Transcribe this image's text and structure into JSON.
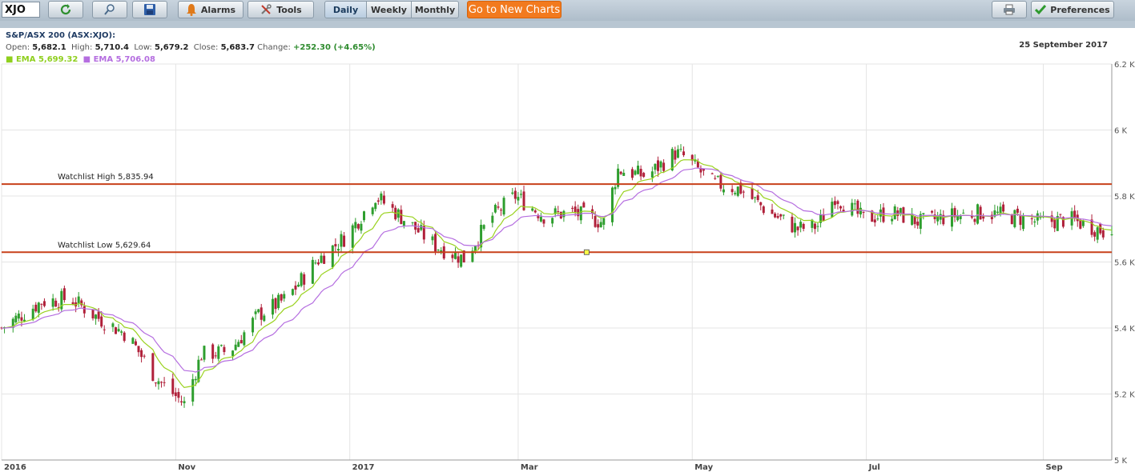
{
  "toolbar": {
    "symbol": "XJO",
    "alarms_label": "Alarms",
    "tools_label": "Tools",
    "periods": [
      "Daily",
      "Weekly",
      "Monthly"
    ],
    "active_period": "Daily",
    "new_charts_label": "Go to New Charts",
    "preferences_label": "Preferences"
  },
  "info": {
    "title": "S&P/ASX 200 (ASX:XJO):",
    "open_label": "Open:",
    "open": "5,682.1",
    "high_label": "High:",
    "high": "5,710.4",
    "low_label": "Low:",
    "low": "5,679.2",
    "close_label": "Close:",
    "close": "5,683.7",
    "change_label": "Change:",
    "change": "+252.30 (+4.65%)",
    "ema1_label": "EMA 5,699.32",
    "ema2_label": "EMA 5,706.08",
    "date": "25 September 2017"
  },
  "colors": {
    "up": "#2e9e2e",
    "down": "#b0203a",
    "ema1": "#9ad21f",
    "ema2": "#b56ee0",
    "watchlist": "#c8401a",
    "grid": "#e4e4e4"
  },
  "chart_data": {
    "type": "candlestick",
    "ylim": [
      5000,
      6200
    ],
    "yticks": [
      5000,
      5200,
      5400,
      5600,
      5800,
      6000,
      6200
    ],
    "ytick_labels": [
      "5 K",
      "5.2 K",
      "5.4 K",
      "5.6 K",
      "5.8 K",
      "6 K",
      "6.2 K"
    ],
    "x_range": [
      "2016-09-01",
      "2017-09-25"
    ],
    "xticks": [
      {
        "date": "2016-09-01",
        "label": "2016"
      },
      {
        "date": "2016-11-01",
        "label": "Nov"
      },
      {
        "date": "2017-01-01",
        "label": "2017"
      },
      {
        "date": "2017-03-01",
        "label": "Mar"
      },
      {
        "date": "2017-05-01",
        "label": "May"
      },
      {
        "date": "2017-07-01",
        "label": "Jul"
      },
      {
        "date": "2017-09-01",
        "label": "Sep"
      }
    ],
    "watchlist": [
      {
        "label": "Watchlist High 5,835.94",
        "value": 5835.94
      },
      {
        "label": "Watchlist Low 5,629.64",
        "value": 5629.64
      }
    ],
    "close_trend": [
      [
        "2016-09-01",
        5400
      ],
      [
        "2016-09-15",
        5480
      ],
      [
        "2016-09-25",
        5490
      ],
      [
        "2016-10-05",
        5430
      ],
      [
        "2016-10-15",
        5380
      ],
      [
        "2016-10-25",
        5250
      ],
      [
        "2016-11-04",
        5170
      ],
      [
        "2016-11-10",
        5320
      ],
      [
        "2016-11-20",
        5330
      ],
      [
        "2016-11-30",
        5440
      ],
      [
        "2016-12-10",
        5490
      ],
      [
        "2016-12-20",
        5600
      ],
      [
        "2016-12-31",
        5680
      ],
      [
        "2017-01-10",
        5800
      ],
      [
        "2017-01-20",
        5730
      ],
      [
        "2017-01-31",
        5650
      ],
      [
        "2017-02-10",
        5610
      ],
      [
        "2017-02-20",
        5740
      ],
      [
        "2017-02-28",
        5800
      ],
      [
        "2017-03-10",
        5740
      ],
      [
        "2017-03-20",
        5750
      ],
      [
        "2017-03-31",
        5720
      ],
      [
        "2017-04-05",
        5880
      ],
      [
        "2017-04-15",
        5860
      ],
      [
        "2017-04-25",
        5930
      ],
      [
        "2017-04-28",
        5920
      ],
      [
        "2017-05-08",
        5840
      ],
      [
        "2017-05-18",
        5820
      ],
      [
        "2017-05-28",
        5750
      ],
      [
        "2017-06-07",
        5700
      ],
      [
        "2017-06-14",
        5710
      ],
      [
        "2017-06-20",
        5800
      ],
      [
        "2017-06-30",
        5730
      ],
      [
        "2017-07-10",
        5750
      ],
      [
        "2017-07-20",
        5720
      ],
      [
        "2017-07-31",
        5740
      ],
      [
        "2017-08-10",
        5750
      ],
      [
        "2017-08-20",
        5740
      ],
      [
        "2017-08-31",
        5720
      ],
      [
        "2017-09-10",
        5730
      ],
      [
        "2017-09-20",
        5700
      ],
      [
        "2017-09-25",
        5684
      ]
    ],
    "ema_series": [
      {
        "name": "EMA 5,699.32",
        "period": 10
      },
      {
        "name": "EMA 5,706.08",
        "period": 20
      }
    ],
    "last": {
      "open": 5682.1,
      "high": 5710.4,
      "low": 5679.2,
      "close": 5683.7
    }
  }
}
